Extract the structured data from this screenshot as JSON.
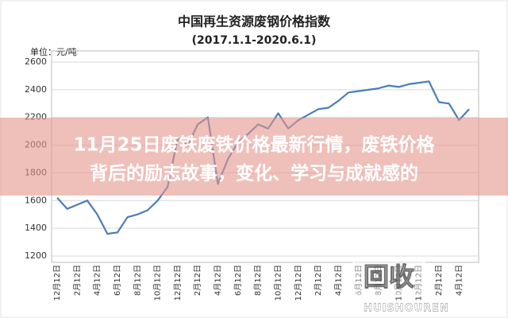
{
  "chart_data": {
    "type": "line",
    "title": "中国再生资源废钢价格指数",
    "subtitle": "(2017.1.1-2020.6.1)",
    "y_label": "单位：元/吨",
    "categories": [
      "12月12日",
      null,
      "2月12日",
      null,
      "4月12日",
      null,
      "6月12日",
      null,
      "8月12日",
      null,
      "10月12日",
      null,
      "12月12日",
      null,
      "2月12日",
      null,
      "4月12日",
      null,
      "6月12日",
      null,
      "8月12日",
      null,
      "10月12日",
      null,
      "12月12日",
      null,
      "2月12日",
      null,
      "4月12日",
      null,
      "6月12日",
      null,
      "8月12日",
      null,
      "10月12日",
      null,
      "12月12日",
      null,
      "2月12日",
      null,
      "4月12日",
      null
    ],
    "values": [
      1620,
      1540,
      1570,
      1600,
      1500,
      1360,
      1370,
      1480,
      1500,
      1530,
      1600,
      1700,
      2050,
      2000,
      2150,
      2200,
      1720,
      1900,
      2020,
      2080,
      2150,
      2120,
      2230,
      2120,
      2180,
      2220,
      2260,
      2270,
      2320,
      2380,
      2390,
      2400,
      2410,
      2430,
      2420,
      2440,
      2450,
      2460,
      2310,
      2300,
      2180,
      2260
    ],
    "color": "#4a7ebb",
    "ylim": [
      1200,
      2600
    ],
    "yticks": [
      1200,
      1400,
      1600,
      1800,
      2000,
      2200,
      2400,
      2600
    ],
    "grid": true
  },
  "headline": [
    "11月25日废铁废铁价格最新行情，废铁价格",
    "背后的励志故事，变化、学习与成就感的"
  ],
  "watermark": {
    "logo": "回收",
    "text": "HUISHOUREN"
  }
}
